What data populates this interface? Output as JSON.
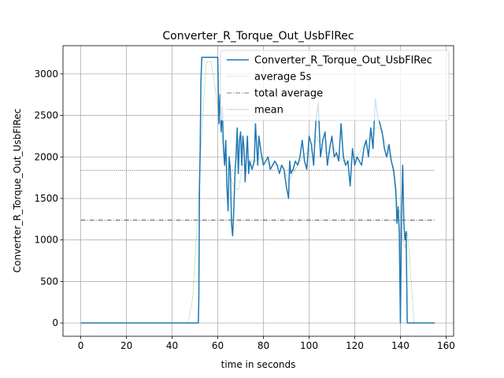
{
  "chart_data": {
    "type": "line",
    "title": "Converter_R_Torque_Out_UsbFlRec",
    "xlabel": "time in seconds",
    "ylabel": "Converter_R_Torque_Out_UsbFlRec",
    "xlim": [
      -7.8,
      163.3
    ],
    "ylim": [
      -160,
      3340
    ],
    "xticks": [
      0,
      20,
      40,
      60,
      80,
      100,
      120,
      140,
      160
    ],
    "yticks": [
      0,
      500,
      1000,
      1500,
      2000,
      2500,
      3000
    ],
    "grid": true,
    "legend_position": "upper right",
    "series": [
      {
        "name": "Converter_R_Torque_Out_UsbFlRec",
        "style": "solid",
        "color": "#1f77b4",
        "x": [
          0,
          51.5,
          51.7,
          52,
          52.3,
          52.6,
          53,
          60,
          60.5,
          61,
          61.5,
          62,
          62.5,
          63,
          63.5,
          64,
          64.5,
          65,
          65.5,
          66,
          66.5,
          67,
          67.3,
          67.6,
          68,
          68.5,
          69,
          69.5,
          70,
          70.5,
          71,
          71.5,
          72,
          72.5,
          73,
          73.5,
          74,
          75,
          76,
          76.5,
          77,
          77.5,
          78,
          79,
          80,
          81,
          82,
          83,
          84,
          85,
          86,
          87,
          88,
          89,
          90,
          91,
          91.5,
          92,
          93,
          94,
          95,
          96,
          97,
          98,
          99,
          100,
          101,
          102,
          103,
          104,
          105,
          106,
          107,
          108,
          109,
          110,
          111,
          112,
          113,
          114,
          115,
          116,
          117,
          118,
          119,
          120,
          121,
          122,
          123,
          124,
          125,
          126,
          127,
          128,
          129,
          130,
          131,
          132,
          133,
          134,
          135,
          136,
          137,
          138,
          138.5,
          139,
          139.5,
          140,
          140.5,
          141,
          141.5,
          142,
          142.5,
          143,
          155
        ],
        "y": [
          0,
          0,
          300,
          1650,
          2100,
          2900,
          3200,
          3200,
          2400,
          2750,
          2300,
          2600,
          2100,
          1900,
          2200,
          1650,
          1350,
          2000,
          1850,
          1200,
          1050,
          1350,
          1600,
          1850,
          2000,
          2350,
          1800,
          2200,
          2300,
          1900,
          2250,
          2100,
          1700,
          2000,
          2250,
          1800,
          1950,
          1850,
          1950,
          2400,
          2150,
          1900,
          2250,
          2050,
          1900,
          1950,
          2000,
          1850,
          1900,
          1950,
          1900,
          1800,
          1900,
          1850,
          1650,
          1500,
          1950,
          1800,
          1850,
          1950,
          1900,
          2000,
          2200,
          1950,
          1850,
          2250,
          2150,
          1900,
          2450,
          2650,
          2000,
          2200,
          2300,
          1900,
          2100,
          2250,
          2000,
          2050,
          1950,
          2400,
          2000,
          1900,
          1950,
          1650,
          2100,
          1900,
          2000,
          1950,
          1900,
          2100,
          2200,
          2000,
          2350,
          2100,
          2700,
          2500,
          2400,
          2300,
          2100,
          2000,
          2150,
          1950,
          1850,
          1600,
          1200,
          1400,
          1100,
          0,
          1300,
          1900,
          1200,
          1000,
          1100,
          0,
          0
        ]
      },
      {
        "name": "average 5s",
        "style": "dotted",
        "color": "#2ca02c",
        "x": [
          0,
          47,
          49,
          51,
          53,
          55,
          57,
          59,
          61,
          63,
          65,
          67,
          69,
          71,
          73,
          75,
          77,
          79,
          81,
          83,
          85,
          87,
          89,
          91,
          93,
          95,
          97,
          99,
          101,
          103,
          105,
          107,
          109,
          111,
          113,
          115,
          117,
          119,
          121,
          123,
          125,
          127,
          129,
          131,
          133,
          135,
          136,
          137,
          138,
          139,
          140,
          141,
          142,
          143,
          144,
          145,
          146,
          147,
          155
        ],
        "y": [
          0,
          0,
          300,
          1200,
          2300,
          3150,
          3150,
          2800,
          2400,
          2000,
          1800,
          1650,
          1600,
          1900,
          2000,
          1950,
          1950,
          2000,
          1950,
          1900,
          1900,
          1900,
          1850,
          1700,
          1800,
          1900,
          2000,
          2050,
          2100,
          2250,
          2150,
          2050,
          2050,
          2100,
          2000,
          1950,
          1950,
          2000,
          2000,
          2100,
          2200,
          2250,
          2350,
          2350,
          2200,
          2050,
          1950,
          1800,
          1500,
          1400,
          1300,
          1000,
          900,
          1100,
          800,
          400,
          0,
          0,
          0
        ]
      },
      {
        "name": "total average",
        "style": "dashdot",
        "color": "#000000",
        "x": [
          0,
          155
        ],
        "y": [
          1240,
          1240
        ]
      },
      {
        "name": "mean",
        "style": "dotted",
        "color": "#000000",
        "x": [
          0,
          155
        ],
        "y": [
          1840,
          1840
        ]
      }
    ]
  }
}
